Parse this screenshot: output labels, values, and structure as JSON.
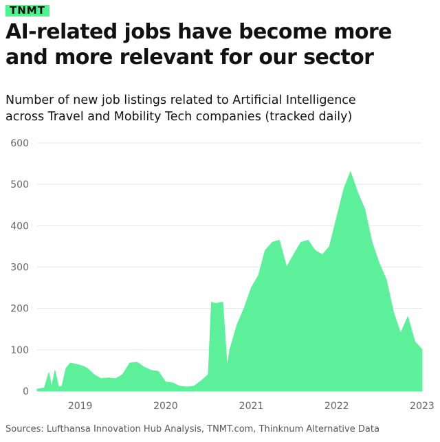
{
  "brand": {
    "logo_text": "TNMT"
  },
  "header": {
    "title_line1": "AI-related jobs have become more",
    "title_line2": "and more relevant for our sector",
    "subtitle_line1": "Number of new job listings related to Artificial Intelligence",
    "subtitle_line2": "across Travel and Mobility Tech companies (tracked daily)"
  },
  "footer": {
    "source": "Sources: Lufthansa Innovation Hub Analysis, TNMT.com, Thinknum Alternative Data"
  },
  "colors": {
    "brand_green": "#4cf58f",
    "series": "#5cf09a",
    "grid": "#e5e5e5",
    "text": "#111111"
  },
  "chart_data": {
    "type": "area",
    "title": "",
    "xlabel": "",
    "ylabel": "",
    "ylim": [
      0,
      600
    ],
    "yticks": [
      0,
      100,
      200,
      300,
      400,
      500,
      600
    ],
    "ytick_labels": [
      "0",
      "100",
      "200",
      "300",
      "400",
      "500",
      "600"
    ],
    "xlim": [
      "2018-07-01",
      "2023-01-01"
    ],
    "xticks": [
      "2019-01-01",
      "2020-01-01",
      "2021-01-01",
      "2022-01-01",
      "2023-01-01"
    ],
    "xtick_labels": [
      "2019",
      "2020",
      "2021",
      "2022",
      "2023"
    ],
    "grid": true,
    "series": [
      {
        "points": [
          [
            "2018-07-01",
            5
          ],
          [
            "2018-08-01",
            8
          ],
          [
            "2018-08-20",
            45
          ],
          [
            "2018-09-01",
            10
          ],
          [
            "2018-09-15",
            50
          ],
          [
            "2018-10-01",
            10
          ],
          [
            "2018-10-15",
            12
          ],
          [
            "2018-11-01",
            55
          ],
          [
            "2018-11-20",
            68
          ],
          [
            "2018-12-15",
            65
          ],
          [
            "2019-01-15",
            60
          ],
          [
            "2019-02-01",
            55
          ],
          [
            "2019-03-01",
            40
          ],
          [
            "2019-04-01",
            30
          ],
          [
            "2019-05-01",
            32
          ],
          [
            "2019-06-01",
            30
          ],
          [
            "2019-07-01",
            40
          ],
          [
            "2019-08-01",
            68
          ],
          [
            "2019-09-01",
            70
          ],
          [
            "2019-10-01",
            58
          ],
          [
            "2019-11-01",
            50
          ],
          [
            "2019-12-01",
            48
          ],
          [
            "2020-01-01",
            22
          ],
          [
            "2020-02-01",
            20
          ],
          [
            "2020-03-01",
            12
          ],
          [
            "2020-04-01",
            10
          ],
          [
            "2020-05-01",
            12
          ],
          [
            "2020-06-01",
            25
          ],
          [
            "2020-07-01",
            40
          ],
          [
            "2020-07-15",
            215
          ],
          [
            "2020-08-01",
            212
          ],
          [
            "2020-09-01",
            215
          ],
          [
            "2020-09-20",
            60
          ],
          [
            "2020-10-01",
            100
          ],
          [
            "2020-11-01",
            160
          ],
          [
            "2020-12-01",
            200
          ],
          [
            "2021-01-01",
            250
          ],
          [
            "2021-02-01",
            280
          ],
          [
            "2021-03-01",
            340
          ],
          [
            "2021-04-01",
            360
          ],
          [
            "2021-05-01",
            365
          ],
          [
            "2021-06-01",
            300
          ],
          [
            "2021-07-01",
            330
          ],
          [
            "2021-08-01",
            360
          ],
          [
            "2021-09-01",
            365
          ],
          [
            "2021-10-01",
            340
          ],
          [
            "2021-11-01",
            330
          ],
          [
            "2021-12-01",
            350
          ],
          [
            "2022-01-01",
            420
          ],
          [
            "2022-02-01",
            490
          ],
          [
            "2022-03-01",
            530
          ],
          [
            "2022-04-01",
            480
          ],
          [
            "2022-05-01",
            440
          ],
          [
            "2022-06-01",
            360
          ],
          [
            "2022-07-01",
            310
          ],
          [
            "2022-08-01",
            270
          ],
          [
            "2022-09-01",
            190
          ],
          [
            "2022-10-01",
            140
          ],
          [
            "2022-11-01",
            180
          ],
          [
            "2022-12-01",
            120
          ],
          [
            "2023-01-01",
            100
          ]
        ]
      }
    ]
  }
}
